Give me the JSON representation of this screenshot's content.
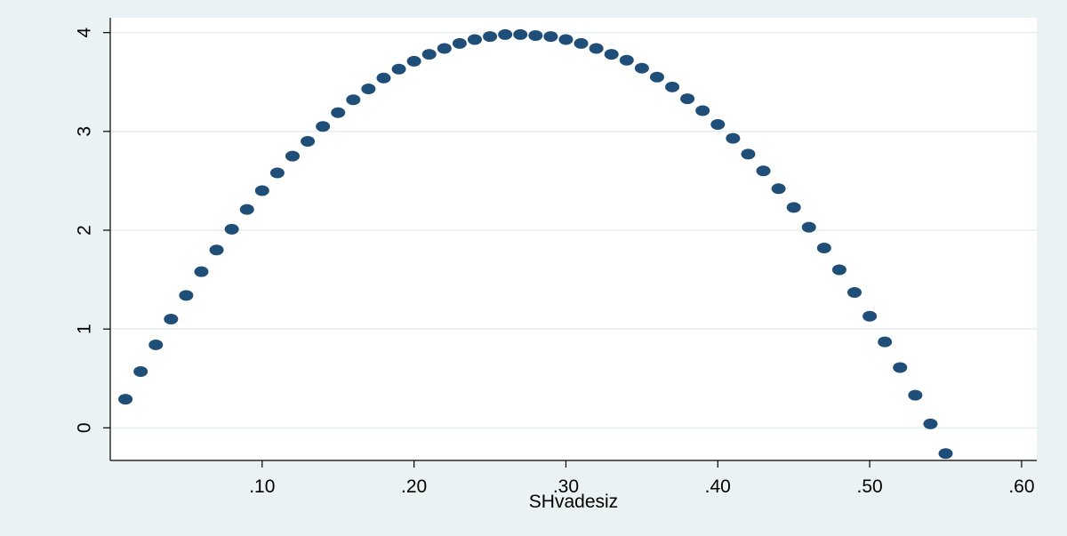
{
  "chart_data": {
    "type": "scatter",
    "title": "",
    "xlabel": "SHvadesiz",
    "ylabel": "",
    "xlim": [
      0,
      0.61
    ],
    "ylim": [
      -0.33,
      4.15
    ],
    "x_ticks": [
      0.1,
      0.2,
      0.3,
      0.4,
      0.5,
      0.6
    ],
    "x_tick_labels": [
      ".10",
      ".20",
      ".30",
      ".40",
      ".50",
      ".60"
    ],
    "y_ticks": [
      0,
      1,
      2,
      3,
      4
    ],
    "y_tick_labels": [
      "0",
      "1",
      "2",
      "3",
      "4"
    ],
    "grid": "horizontal",
    "marker_color": "#1f4e79",
    "series": [
      {
        "x": [
          0.01,
          0.02,
          0.03,
          0.04,
          0.05,
          0.06,
          0.07,
          0.08,
          0.09,
          0.1,
          0.11,
          0.12,
          0.13,
          0.14,
          0.15,
          0.16,
          0.17,
          0.18,
          0.19,
          0.2,
          0.21,
          0.22,
          0.23,
          0.24,
          0.25,
          0.26,
          0.27,
          0.28,
          0.29,
          0.3,
          0.31,
          0.32,
          0.33,
          0.34,
          0.35,
          0.36,
          0.37,
          0.38,
          0.39,
          0.4,
          0.41,
          0.42,
          0.43,
          0.44,
          0.45,
          0.46,
          0.47,
          0.48,
          0.49,
          0.5,
          0.51,
          0.52,
          0.53,
          0.54,
          0.55
        ],
        "y": [
          0.29,
          0.57,
          0.84,
          1.1,
          1.34,
          1.58,
          1.8,
          2.01,
          2.21,
          2.4,
          2.58,
          2.75,
          2.9,
          3.05,
          3.19,
          3.32,
          3.43,
          3.54,
          3.63,
          3.71,
          3.78,
          3.84,
          3.89,
          3.93,
          3.96,
          3.98,
          3.98,
          3.97,
          3.96,
          3.93,
          3.89,
          3.84,
          3.78,
          3.72,
          3.64,
          3.55,
          3.45,
          3.33,
          3.21,
          3.07,
          2.93,
          2.77,
          2.6,
          2.42,
          2.23,
          2.03,
          1.82,
          1.6,
          1.37,
          1.13,
          0.87,
          0.61,
          0.33,
          0.04,
          -0.26
        ]
      }
    ]
  }
}
